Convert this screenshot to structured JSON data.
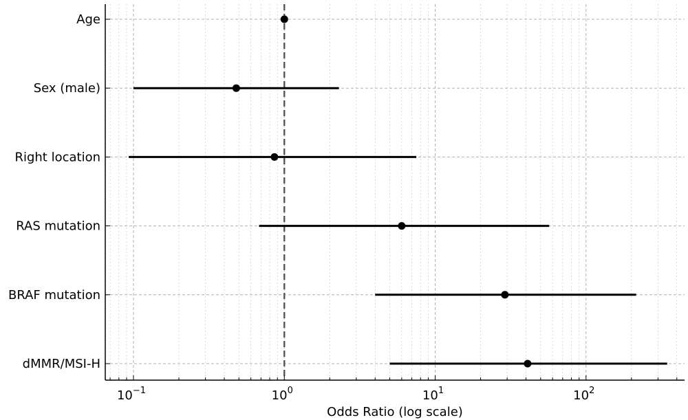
{
  "chart_data": {
    "type": "forest",
    "xlabel": "Odds Ratio (log scale)",
    "x_scale": "log",
    "xlim": [
      0.065,
      450
    ],
    "x_ticks": [
      {
        "value": 0.1,
        "base": "10",
        "exp": "−1"
      },
      {
        "value": 1,
        "base": "10",
        "exp": "0"
      },
      {
        "value": 10,
        "base": "10",
        "exp": "1"
      },
      {
        "value": 100,
        "base": "10",
        "exp": "2"
      }
    ],
    "reference_line": 1,
    "grid": true,
    "categories": [
      "Age",
      "Sex (male)",
      "Right location",
      "RAS mutation",
      "BRAF mutation",
      "dMMR/MSI-H"
    ],
    "points": [
      {
        "label": "Age",
        "or": 1.0,
        "lower": 1.0,
        "upper": 1.0
      },
      {
        "label": "Sex (male)",
        "or": 0.48,
        "lower": 0.1,
        "upper": 2.3
      },
      {
        "label": "Right location",
        "or": 0.86,
        "lower": 0.093,
        "upper": 7.5
      },
      {
        "label": "RAS mutation",
        "or": 6.0,
        "lower": 0.68,
        "upper": 57
      },
      {
        "label": "BRAF mutation",
        "or": 29,
        "lower": 4.0,
        "upper": 215
      },
      {
        "label": "dMMR/MSI-H",
        "or": 41,
        "lower": 5.0,
        "upper": 345
      }
    ],
    "colors": {
      "marks": "#000000",
      "grid": "#b0b0b0",
      "reference": "#555555"
    }
  }
}
